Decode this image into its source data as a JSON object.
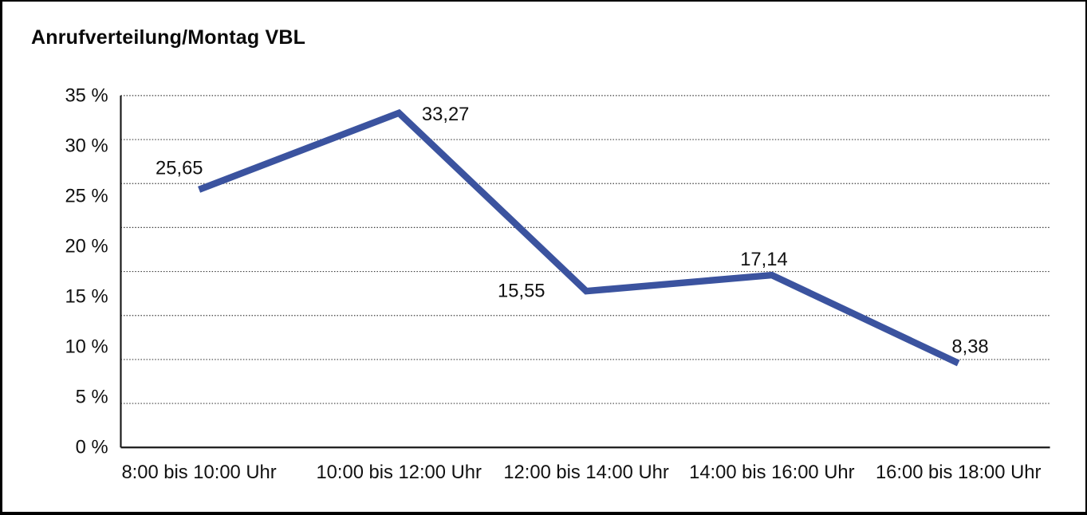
{
  "page": {
    "background": "#FFFFFF",
    "border_color": "#000000"
  },
  "title": "Anrufverteilung/Montag VBL",
  "chart_data": {
    "type": "line",
    "title": "Anrufverteilung/Montag VBL",
    "categories": [
      "8:00 bis 10:00 Uhr",
      "10:00 bis 12:00 Uhr",
      "12:00 bis 14:00 Uhr",
      "14:00 bis 16:00 Uhr",
      "16:00 bis 18:00 Uhr"
    ],
    "values": [
      25.65,
      33.27,
      15.55,
      17.14,
      8.38
    ],
    "value_labels": [
      "25,65",
      "33,27",
      "15,55",
      "17,14",
      "8,38"
    ],
    "xlabel": "",
    "ylabel": "",
    "ylim": [
      0,
      35
    ],
    "y_ticks": {
      "values": [
        35,
        30,
        25,
        20,
        15,
        10,
        5,
        0
      ],
      "labels": [
        "35 %",
        "30 %",
        "25 %",
        "20 %",
        "15 %",
        "10 %",
        "5 %",
        "0 %"
      ]
    },
    "grid": {
      "horizontal": true,
      "style": "dotted",
      "color": "#3c3c3c"
    },
    "legend": "none",
    "line_color": "#3B539F",
    "axis_color": "#1a1a1a",
    "text_color": "#111111"
  }
}
